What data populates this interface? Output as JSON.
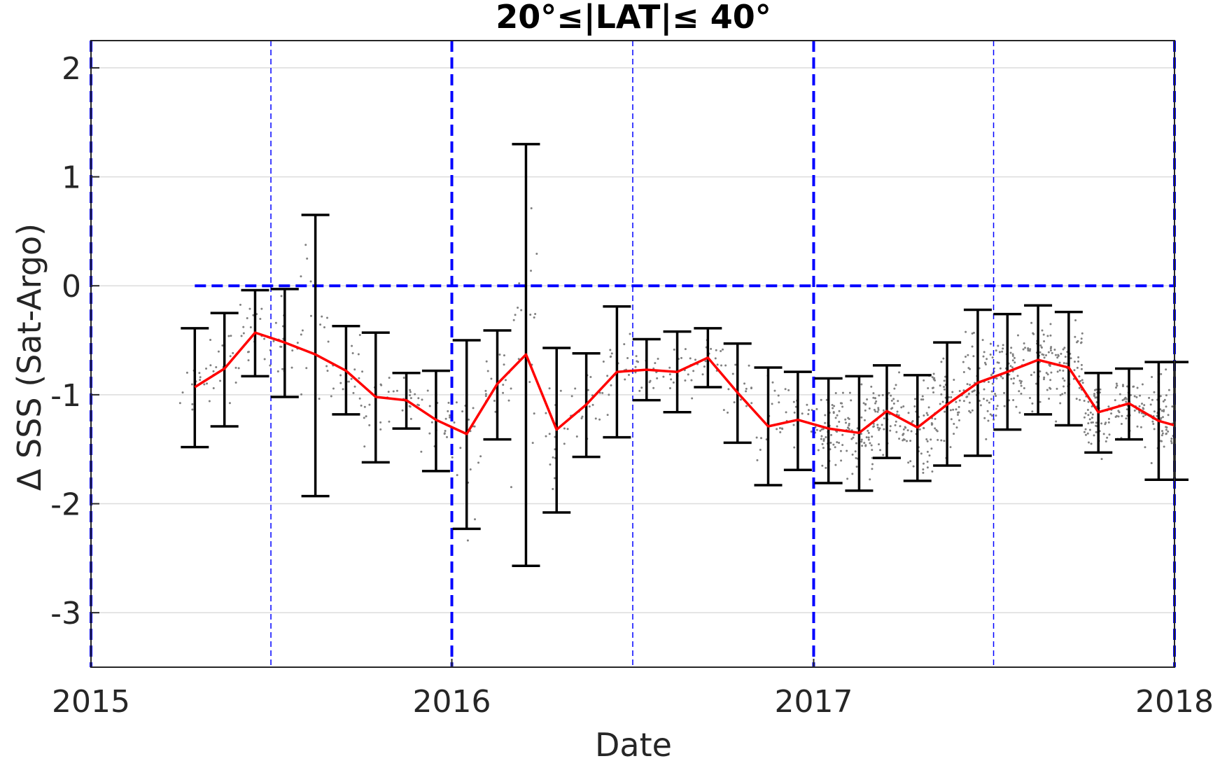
{
  "chart_data": {
    "type": "line",
    "title": "20°≤|LAT|≤ 40°",
    "xlabel": "Date",
    "ylabel": "Δ SSS (Sat-Argo)",
    "xlim": [
      "2015-01-01",
      "2018-01-01"
    ],
    "ylim": [
      -3.5,
      2.25
    ],
    "x_ticks": [
      "2015",
      "2016",
      "2017",
      "2018"
    ],
    "y_ticks": [
      2,
      1,
      0,
      -1,
      -2,
      -3
    ],
    "y_tick_labels": [
      "2",
      "1",
      "0",
      "-1",
      "-2",
      "-3"
    ],
    "grid": true,
    "colors": {
      "mean": "#ff0000",
      "errorbar": "#000000",
      "reference": "#0000ff",
      "points": "#808080"
    },
    "series": [
      {
        "x": [
          "2015-04-16",
          "2015-05-16",
          "2015-06-16",
          "2015-07-16",
          "2015-08-16",
          "2015-09-16",
          "2015-10-16",
          "2015-11-16",
          "2015-12-16",
          "2016-01-16",
          "2016-02-16",
          "2016-03-16",
          "2016-04-16",
          "2016-05-16",
          "2016-06-16",
          "2016-07-16",
          "2016-08-16",
          "2016-09-16",
          "2016-10-16",
          "2016-11-16",
          "2016-12-16",
          "2017-01-16",
          "2017-02-16",
          "2017-03-16",
          "2017-04-16",
          "2017-05-16",
          "2017-06-16",
          "2017-07-16",
          "2017-08-16",
          "2017-09-16",
          "2017-10-16",
          "2017-11-16",
          "2017-12-16",
          "2018-01-01"
        ],
        "mean": [
          -0.93,
          -0.76,
          -0.43,
          -0.52,
          -0.63,
          -0.78,
          -1.02,
          -1.05,
          -1.23,
          -1.36,
          -0.9,
          -0.63,
          -1.32,
          -1.09,
          -0.79,
          -0.77,
          -0.79,
          -0.66,
          -0.98,
          -1.29,
          -1.23,
          -1.31,
          -1.35,
          -1.15,
          -1.3,
          -1.09,
          -0.89,
          -0.79,
          -0.68,
          -0.75,
          -1.16,
          -1.08,
          -1.24,
          -1.28
        ],
        "lower": [
          -1.48,
          -1.29,
          -0.83,
          -1.02,
          -1.93,
          -1.18,
          -1.62,
          -1.31,
          -1.7,
          -2.23,
          -1.41,
          -2.57,
          -2.08,
          -1.57,
          -1.39,
          -1.05,
          -1.16,
          -0.93,
          -1.44,
          -1.83,
          -1.69,
          -1.81,
          -1.88,
          -1.58,
          -1.79,
          -1.65,
          -1.56,
          -1.32,
          -1.18,
          -1.28,
          -1.53,
          -1.41,
          -1.78,
          -1.78
        ],
        "upper": [
          -0.39,
          -0.25,
          -0.04,
          -0.03,
          0.65,
          -0.37,
          -0.43,
          -0.8,
          -0.78,
          -0.5,
          -0.41,
          1.3,
          -0.57,
          -0.62,
          -0.19,
          -0.49,
          -0.42,
          -0.39,
          -0.53,
          -0.75,
          -0.79,
          -0.85,
          -0.83,
          -0.73,
          -0.82,
          -0.52,
          -0.22,
          -0.26,
          -0.18,
          -0.24,
          -0.8,
          -0.76,
          -0.7,
          -0.7
        ]
      }
    ]
  }
}
